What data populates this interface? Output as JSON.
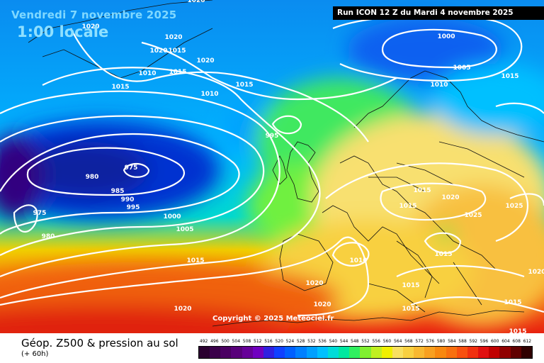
{
  "overlay": {
    "date": "Vendredi 7 novembre 2025",
    "time": "1:00 locale"
  },
  "run_info": "Run ICON 12 Z du Mardi 4 novembre 2025",
  "copyright": "Copyright © 2025 Meteociel.fr",
  "footer": {
    "title": "Géop. Z500 & pression au sol",
    "subtitle": "(+ 60h)"
  },
  "scale": {
    "labels": [
      "492",
      "496",
      "500",
      "504",
      "508",
      "512",
      "516",
      "520",
      "524",
      "528",
      "532",
      "536",
      "540",
      "544",
      "548",
      "552",
      "556",
      "560",
      "564",
      "568",
      "572",
      "576",
      "580",
      "584",
      "588",
      "592",
      "596",
      "600",
      "604",
      "608",
      "612"
    ],
    "colors": [
      "#2b0030",
      "#3a004a",
      "#4a0062",
      "#58007a",
      "#660098",
      "#7000c0",
      "#3020e0",
      "#1040ff",
      "#0060ff",
      "#0080ff",
      "#00a0ff",
      "#00c0ff",
      "#00dcd8",
      "#00e8a0",
      "#30f060",
      "#80f030",
      "#c0f020",
      "#f0f000",
      "#f8e060",
      "#f8d040",
      "#f8b830",
      "#f8a020",
      "#f88810",
      "#f87010",
      "#f85010",
      "#f03010",
      "#e01010",
      "#c00000",
      "#900000",
      "#600000",
      "#300000"
    ]
  },
  "isobars": [
    {
      "label": "1000"
    },
    {
      "label": "1005"
    },
    {
      "label": "1010"
    },
    {
      "label": "1015"
    },
    {
      "label": "995"
    },
    {
      "label": "975"
    },
    {
      "label": "980"
    },
    {
      "label": "985"
    },
    {
      "label": "990"
    },
    {
      "label": "995"
    },
    {
      "label": "1000"
    },
    {
      "label": "1005"
    },
    {
      "label": "1015"
    },
    {
      "label": "975"
    },
    {
      "label": "980"
    },
    {
      "label": "1020"
    },
    {
      "label": "1015"
    },
    {
      "label": "1020"
    },
    {
      "label": "1015"
    },
    {
      "label": "1010"
    },
    {
      "label": "1015"
    },
    {
      "label": "1015"
    },
    {
      "label": "1020"
    },
    {
      "label": "1025"
    },
    {
      "label": "1025"
    },
    {
      "label": "1015"
    },
    {
      "label": "1010"
    },
    {
      "label": "1020"
    },
    {
      "label": "1020"
    },
    {
      "label": "1015"
    },
    {
      "label": "1015"
    },
    {
      "label": "1015"
    },
    {
      "label": "1020"
    },
    {
      "label": "1015"
    },
    {
      "label": "1020"
    },
    {
      "label": "1020"
    },
    {
      "label": "1020"
    },
    {
      "label": "1015"
    },
    {
      "label": "1010"
    },
    {
      "label": "1020"
    },
    {
      "label": "1015"
    }
  ]
}
